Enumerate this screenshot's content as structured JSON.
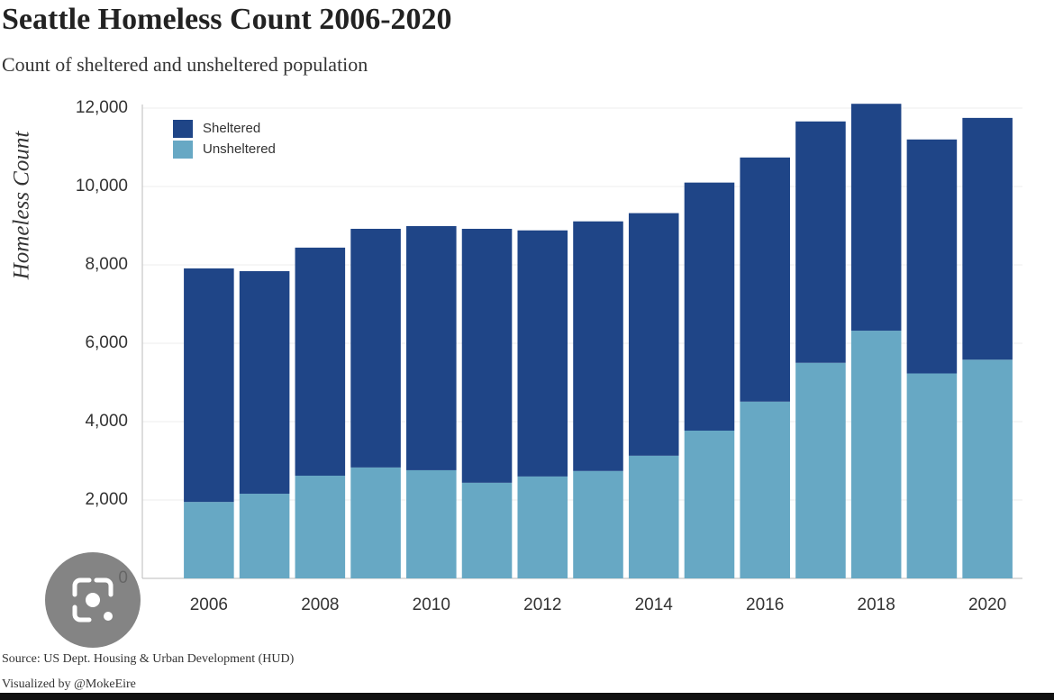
{
  "chart_data": {
    "type": "stacked-bar",
    "title": "Seattle Homeless Count 2006-2020",
    "subtitle": "Count of sheltered and unsheltered population",
    "y_label": "Homeless Count",
    "source": "Source: US Dept. Housing & Urban Development (HUD)",
    "credit": "Visualized by @MokeEire",
    "categories": [
      "2006",
      null,
      "2008",
      null,
      "2010",
      null,
      "2012",
      null,
      "2014",
      null,
      "2016",
      null,
      "2018",
      null,
      "2020"
    ],
    "series": [
      {
        "name": "Sheltered",
        "color": "#1f4587",
        "values": [
          5960,
          5680,
          5820,
          6090,
          6230,
          6480,
          6280,
          6370,
          6190,
          6330,
          6230,
          6160,
          5790,
          5970,
          6170
        ]
      },
      {
        "name": "Unsheltered",
        "color": "#67a8c4",
        "values": [
          1950,
          2160,
          2620,
          2830,
          2760,
          2440,
          2600,
          2740,
          3130,
          3770,
          4510,
          5500,
          6320,
          5230,
          5580
        ]
      }
    ],
    "ylim": [
      0,
      12000
    ],
    "yticks": [
      0,
      {
        "value": 2000,
        "label": "2,000"
      },
      {
        "value": 4000,
        "label": "4,000"
      },
      {
        "value": 6000,
        "label": "6,000"
      },
      {
        "value": 8000,
        "label": "8,000"
      },
      {
        "value": 10000,
        "label": "10,000"
      },
      {
        "value": 12000,
        "label": "12,000"
      }
    ],
    "grid": true,
    "legend": "top-left"
  }
}
